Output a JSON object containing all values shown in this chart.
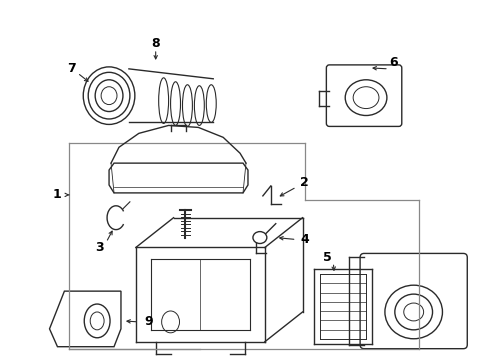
{
  "bg_color": "#ffffff",
  "line_color": "#2a2a2a",
  "label_color": "#000000",
  "lw": 1.0,
  "fig_w": 4.9,
  "fig_h": 3.6,
  "dpi": 100
}
